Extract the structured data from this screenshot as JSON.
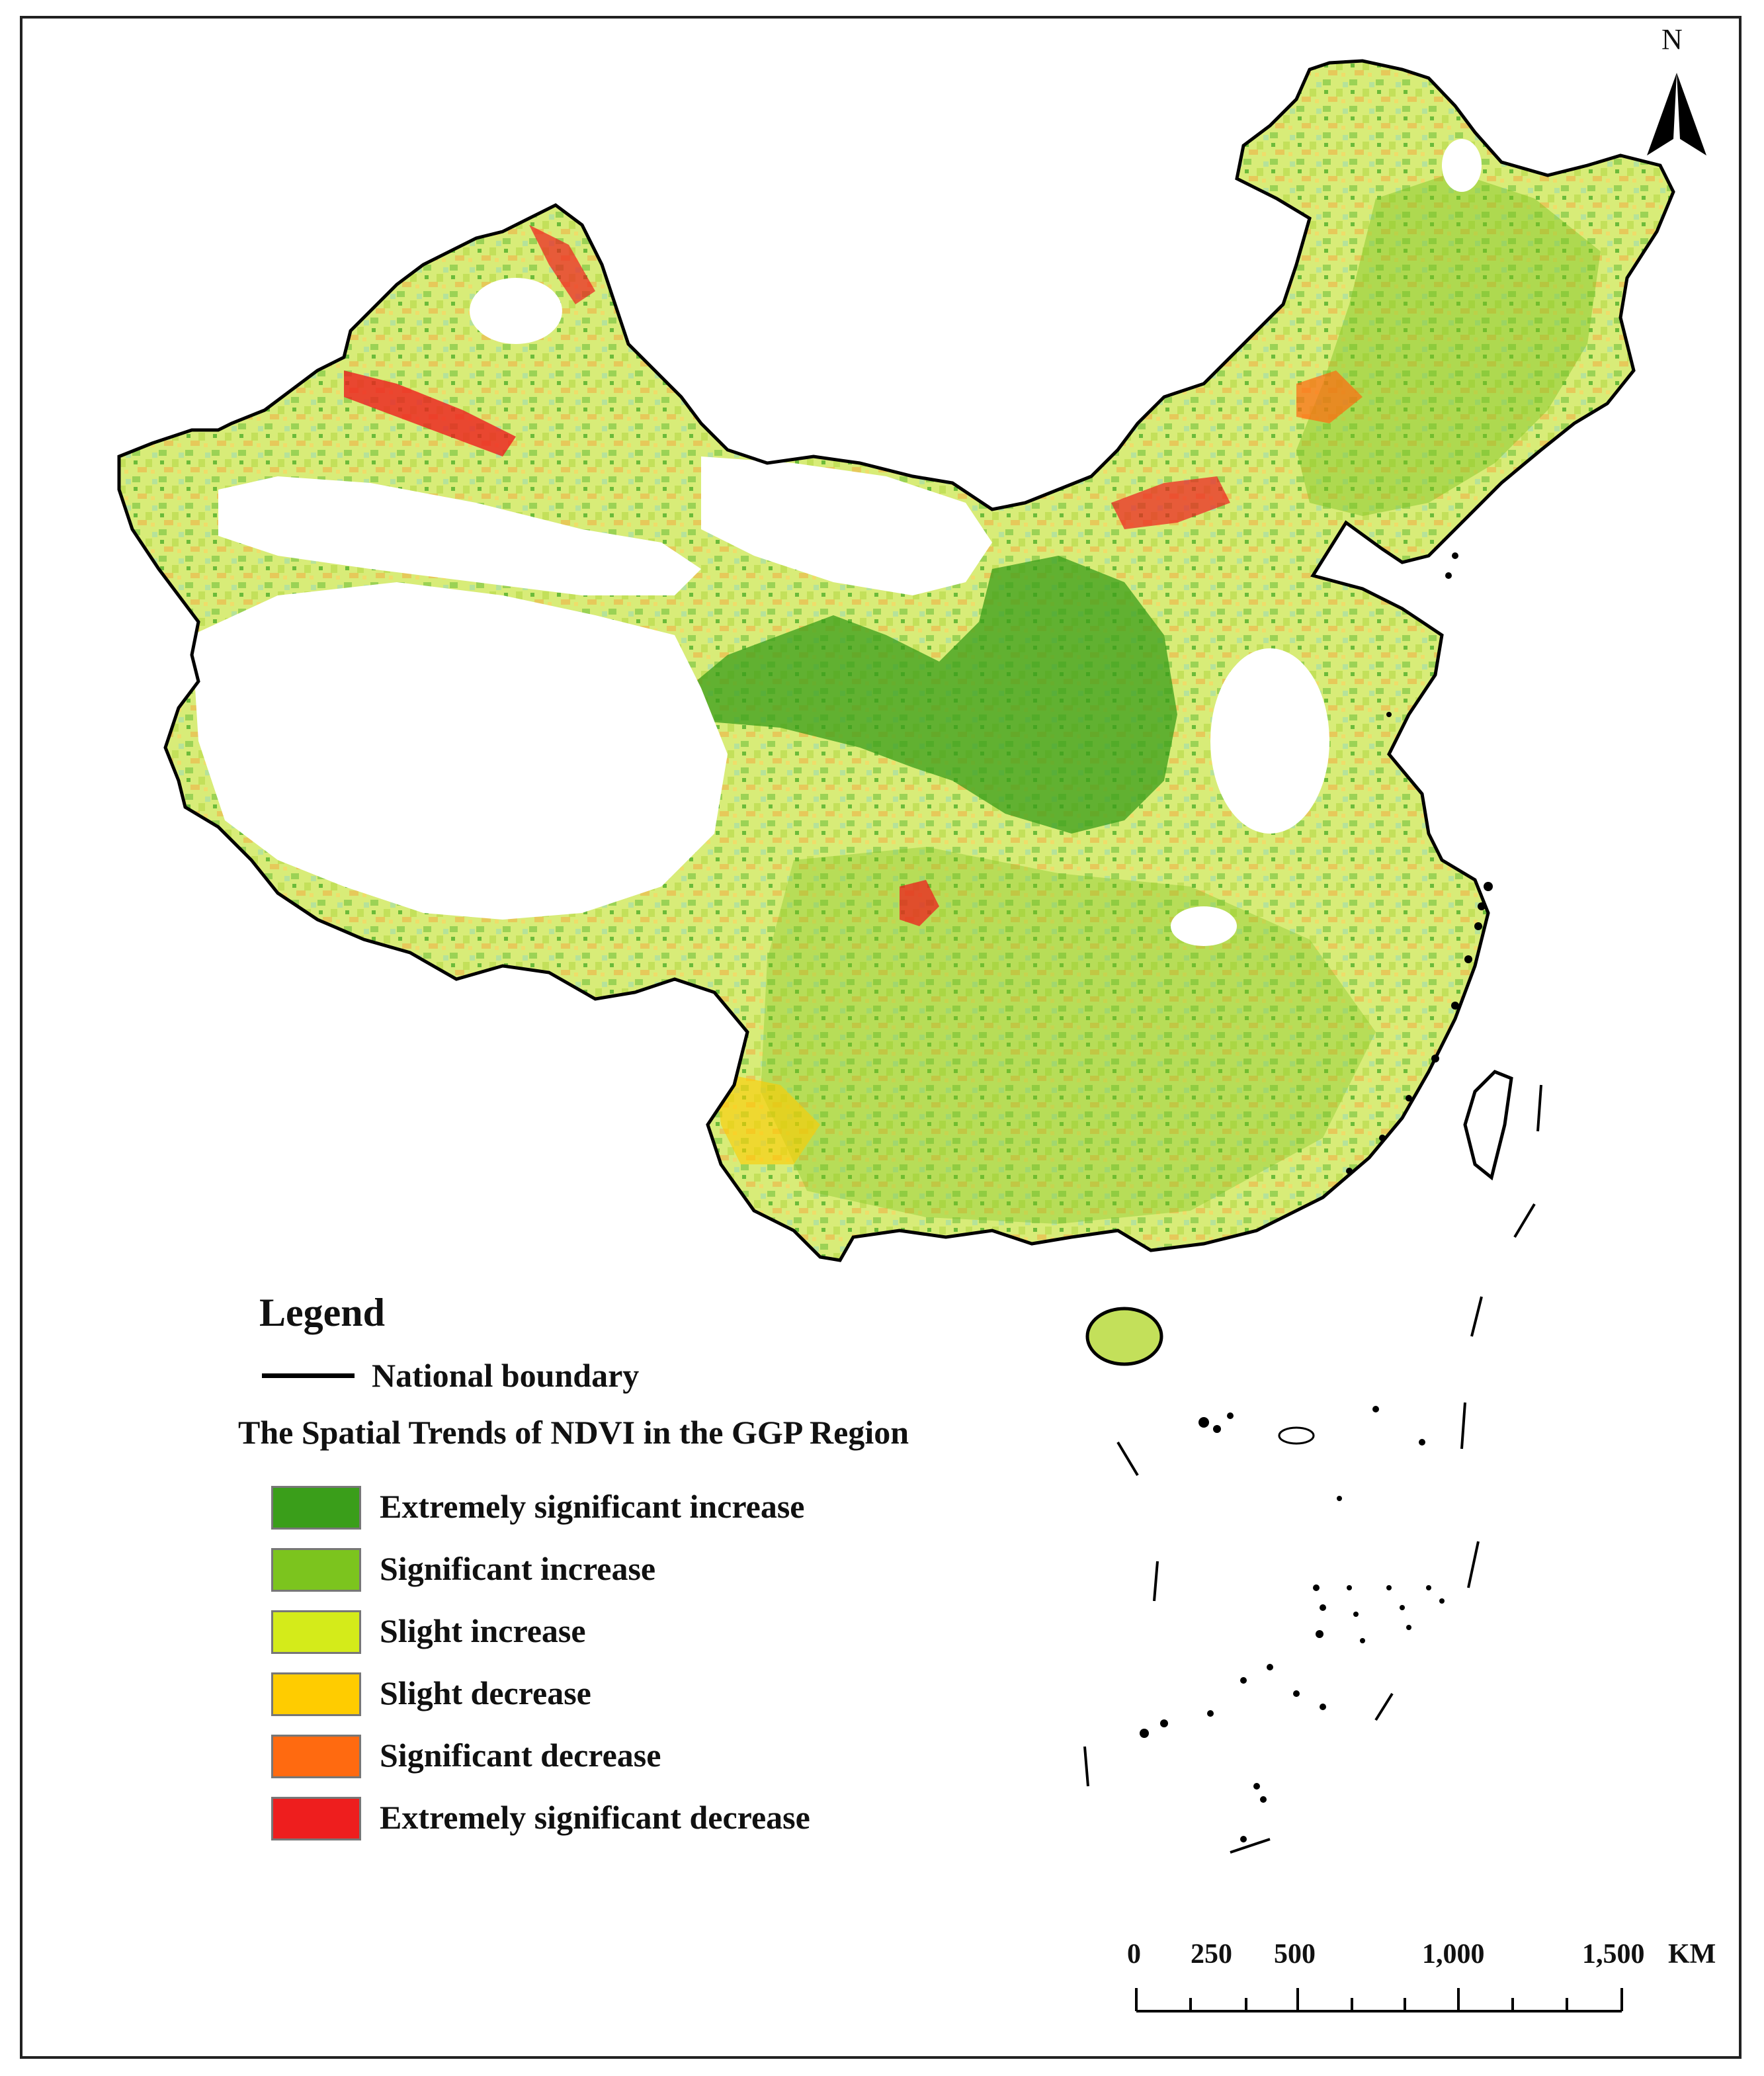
{
  "map": {
    "north_label": "N",
    "legend": {
      "title": "Legend",
      "boundary_label": "National boundary",
      "subtitle": "The Spatial Trends of NDVI in the GGP Region",
      "classes": [
        {
          "label": "Extremely significant increase",
          "color": "#3a9e1a"
        },
        {
          "label": "Significant increase",
          "color": "#7cc41e"
        },
        {
          "label": "Slight increase",
          "color": "#d4eb1a"
        },
        {
          "label": "Slight decrease",
          "color": "#ffcc00"
        },
        {
          "label": "Significant decrease",
          "color": "#ff6a10"
        },
        {
          "label": "Extremely significant decrease",
          "color": "#ee1e1e"
        }
      ]
    },
    "scale_bar": {
      "ticks": [
        "0",
        "250",
        "500",
        "1,000",
        "1,500"
      ],
      "unit": "KM"
    }
  }
}
